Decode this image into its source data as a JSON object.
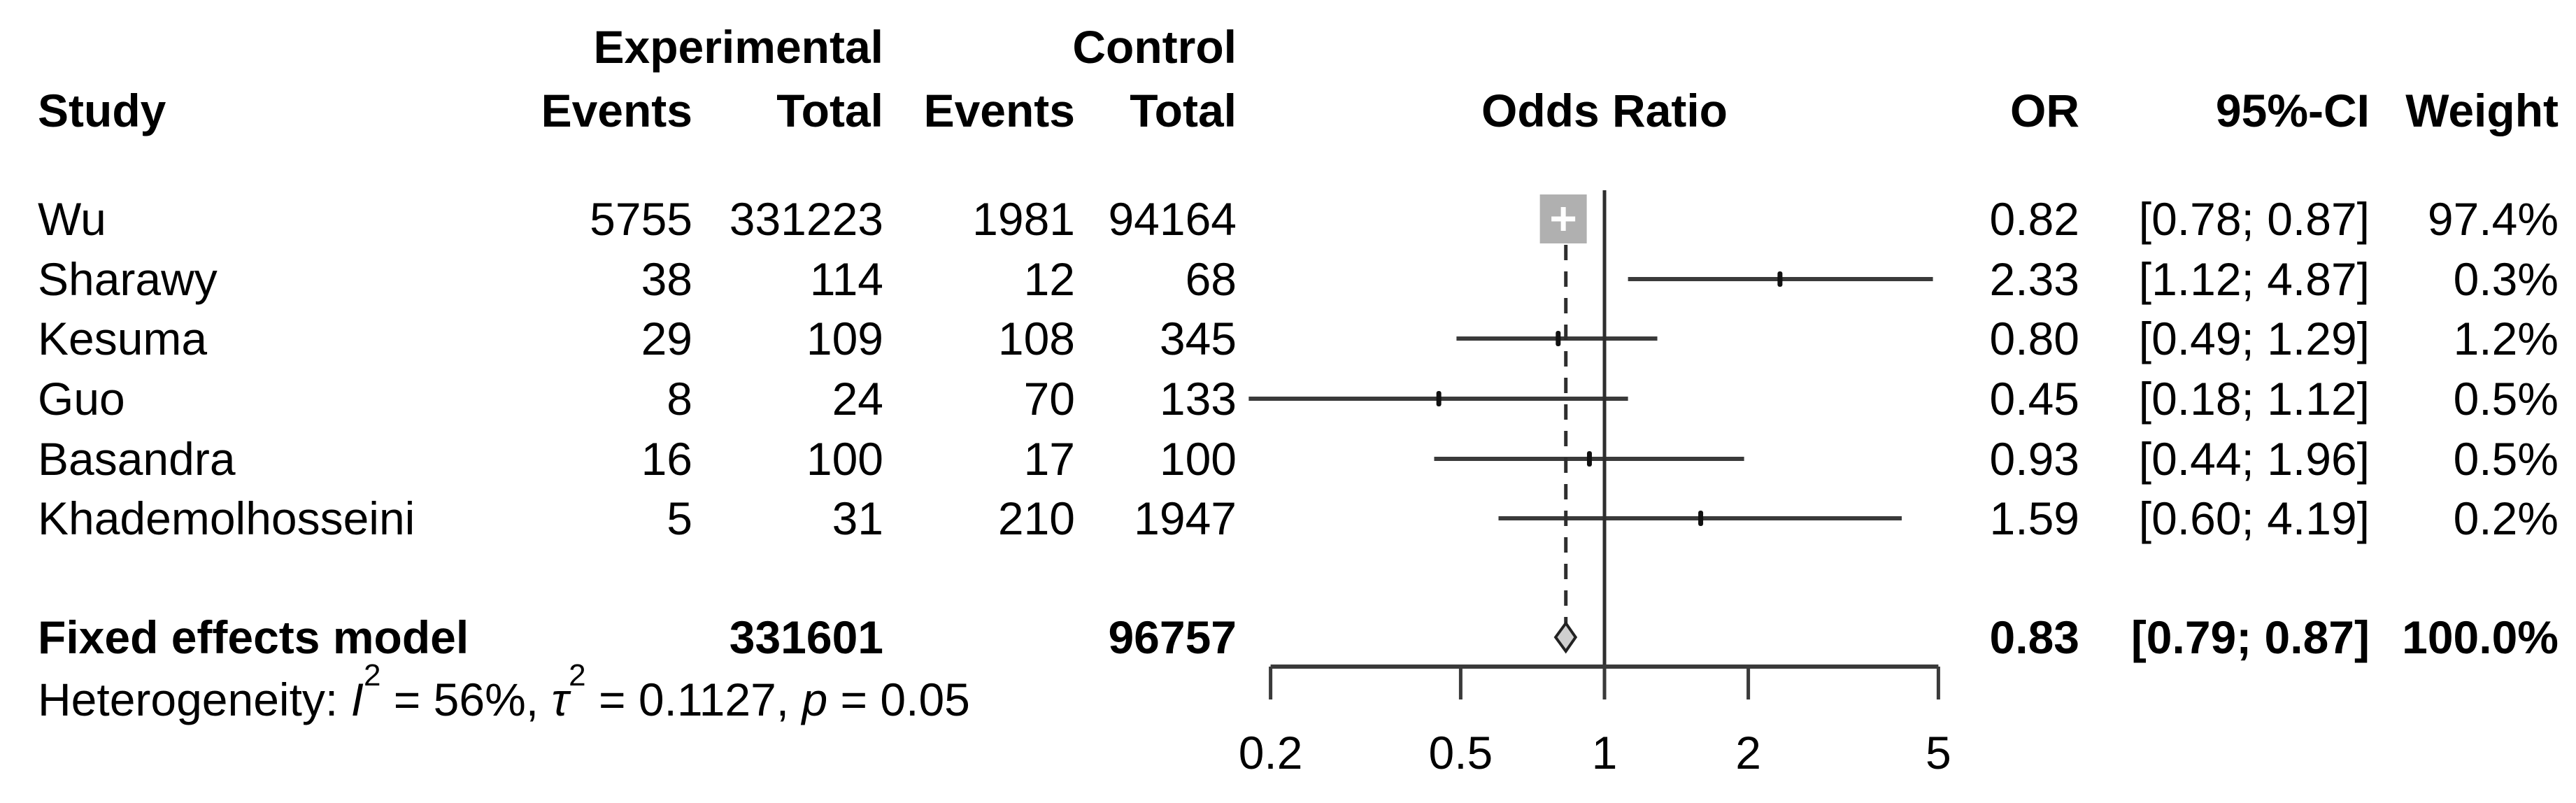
{
  "header": {
    "group_experimental": "Experimental",
    "group_control": "Control",
    "study": "Study",
    "events_exp": "Events",
    "total_exp": "Total",
    "events_ctrl": "Events",
    "total_ctrl": "Total",
    "plot_title": "Odds Ratio",
    "or": "OR",
    "ci": "95%-CI",
    "weight": "Weight"
  },
  "table": {
    "rows": [
      {
        "study": "Wu",
        "ee": "5755",
        "et": "331223",
        "ce": "1981",
        "ct": "94164",
        "or": "0.82",
        "ci": "[0.78; 0.87]",
        "wt": "97.4%"
      },
      {
        "study": "Sharawy",
        "ee": "38",
        "et": "114",
        "ce": "12",
        "ct": "68",
        "or": "2.33",
        "ci": "[1.12; 4.87]",
        "wt": "0.3%"
      },
      {
        "study": "Kesuma",
        "ee": "29",
        "et": "109",
        "ce": "108",
        "ct": "345",
        "or": "0.80",
        "ci": "[0.49; 1.29]",
        "wt": "1.2%"
      },
      {
        "study": "Guo",
        "ee": "8",
        "et": "24",
        "ce": "70",
        "ct": "133",
        "or": "0.45",
        "ci": "[0.18; 1.12]",
        "wt": "0.5%"
      },
      {
        "study": "Basandra",
        "ee": "16",
        "et": "100",
        "ce": "17",
        "ct": "100",
        "or": "0.93",
        "ci": "[0.44; 1.96]",
        "wt": "0.5%"
      },
      {
        "study": "Khademolhosseini",
        "ee": "5",
        "et": "31",
        "ce": "210",
        "ct": "1947",
        "or": "1.59",
        "ci": "[0.60; 4.19]",
        "wt": "0.2%"
      }
    ],
    "summary": {
      "label": "Fixed effects model",
      "et": "331601",
      "ct": "96757",
      "or": "0.83",
      "ci": "[0.79; 0.87]",
      "wt": "100.0%"
    }
  },
  "heterogeneity": {
    "prefix": "Heterogeneity: ",
    "i_sym": "I",
    "i_sup": "2",
    "seg1": " = 56%, ",
    "tau_sym": "τ",
    "tau_sup": "2",
    "seg2": " = 0.1127, ",
    "p_sym": "p",
    "seg3": " = 0.05"
  },
  "colors": {
    "text": "#000000",
    "ci_line": "#3a3a3a",
    "ref_line": "#2e2e2e",
    "square_fill": "#b0b0b0",
    "square_cross": "#ffffff",
    "marker_tick": "#111111",
    "diamond_fill": "#cfcfcf",
    "diamond_stroke": "#222222",
    "axis": "#3a3a3a"
  },
  "chart_data": {
    "type": "forest",
    "title": "Odds Ratio",
    "x_scale": "log",
    "x_ticks": [
      0.2,
      0.5,
      1,
      2,
      5
    ],
    "x_tick_labels": [
      "0.2",
      "0.5",
      "1",
      "2",
      "5"
    ],
    "x_range": [
      0.2,
      5
    ],
    "ref_line": 1,
    "pooled_line": 0.83,
    "studies": [
      {
        "label": "Wu",
        "events_exp": 5755,
        "total_exp": 331223,
        "events_ctrl": 1981,
        "total_ctrl": 94164,
        "or": 0.82,
        "ci_low": 0.78,
        "ci_high": 0.87,
        "weight_pct": 97.4
      },
      {
        "label": "Sharawy",
        "events_exp": 38,
        "total_exp": 114,
        "events_ctrl": 12,
        "total_ctrl": 68,
        "or": 2.33,
        "ci_low": 1.12,
        "ci_high": 4.87,
        "weight_pct": 0.3
      },
      {
        "label": "Kesuma",
        "events_exp": 29,
        "total_exp": 109,
        "events_ctrl": 108,
        "total_ctrl": 345,
        "or": 0.8,
        "ci_low": 0.49,
        "ci_high": 1.29,
        "weight_pct": 1.2
      },
      {
        "label": "Guo",
        "events_exp": 8,
        "total_exp": 24,
        "events_ctrl": 70,
        "total_ctrl": 133,
        "or": 0.45,
        "ci_low": 0.18,
        "ci_high": 1.12,
        "weight_pct": 0.5
      },
      {
        "label": "Basandra",
        "events_exp": 16,
        "total_exp": 100,
        "events_ctrl": 17,
        "total_ctrl": 100,
        "or": 0.93,
        "ci_low": 0.44,
        "ci_high": 1.96,
        "weight_pct": 0.5
      },
      {
        "label": "Khademolhosseini",
        "events_exp": 5,
        "total_exp": 31,
        "events_ctrl": 210,
        "total_ctrl": 1947,
        "or": 1.59,
        "ci_low": 0.6,
        "ci_high": 4.19,
        "weight_pct": 0.2
      }
    ],
    "summary": {
      "label": "Fixed effects model",
      "model": "fixed",
      "total_exp": 331601,
      "total_ctrl": 96757,
      "or": 0.83,
      "ci_low": 0.79,
      "ci_high": 0.87,
      "weight_pct": 100.0
    },
    "heterogeneity": {
      "i_squared_pct": 56,
      "tau_squared": 0.1127,
      "p_value": 0.05
    }
  }
}
